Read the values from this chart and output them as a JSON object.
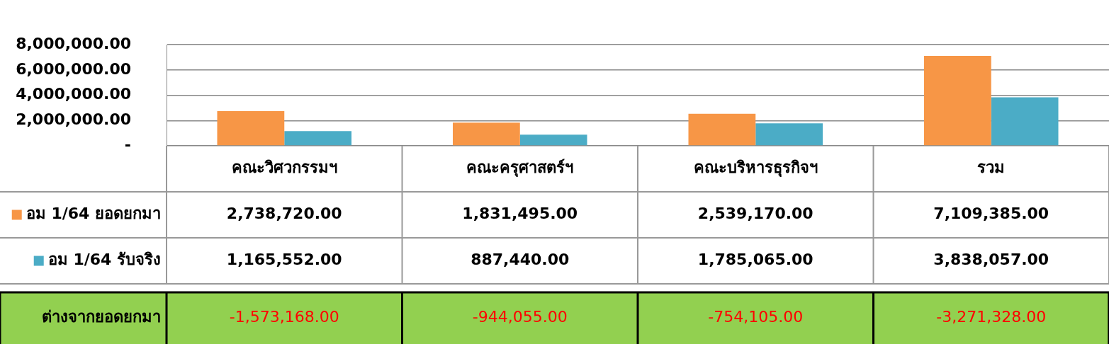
{
  "chart_data": {
    "type": "bar",
    "categories": [
      "คณะวิศวกรรมฯ",
      "คณะครุศาสตร์ฯ",
      "คณะบริหารธุรกิจฯ",
      "รวม"
    ],
    "series": [
      {
        "name": "อม 1/64 ยอดยกมา",
        "color": "#f79646",
        "values": [
          2738720,
          1831495,
          2539170,
          7109385
        ],
        "value_labels": [
          "2,738,720.00",
          "1,831,495.00",
          "2,539,170.00",
          "7,109,385.00"
        ]
      },
      {
        "name": "อม 1/64 รับจริง",
        "color": "#4bacc6",
        "values": [
          1165552,
          887440,
          1785065,
          3838057
        ],
        "value_labels": [
          "1,165,552.00",
          "887,440.00",
          "1,785,065.00",
          "3,838,057.00"
        ]
      }
    ],
    "ylim": [
      0,
      8000000
    ],
    "yticks": [
      {
        "value": 0,
        "label": "-"
      },
      {
        "value": 2000000,
        "label": "2,000,000.00"
      },
      {
        "value": 4000000,
        "label": "4,000,000.00"
      },
      {
        "value": 6000000,
        "label": "6,000,000.00"
      },
      {
        "value": 8000000,
        "label": "8,000,000.00"
      }
    ],
    "grid": "y",
    "legend": "left",
    "data_labels": true,
    "annotations": [
      "ต่างจากยอดยกมา",
      "-1,573,168.00",
      "-944,055.00",
      "-754,105.00",
      "-3,271,328.00"
    ]
  }
}
